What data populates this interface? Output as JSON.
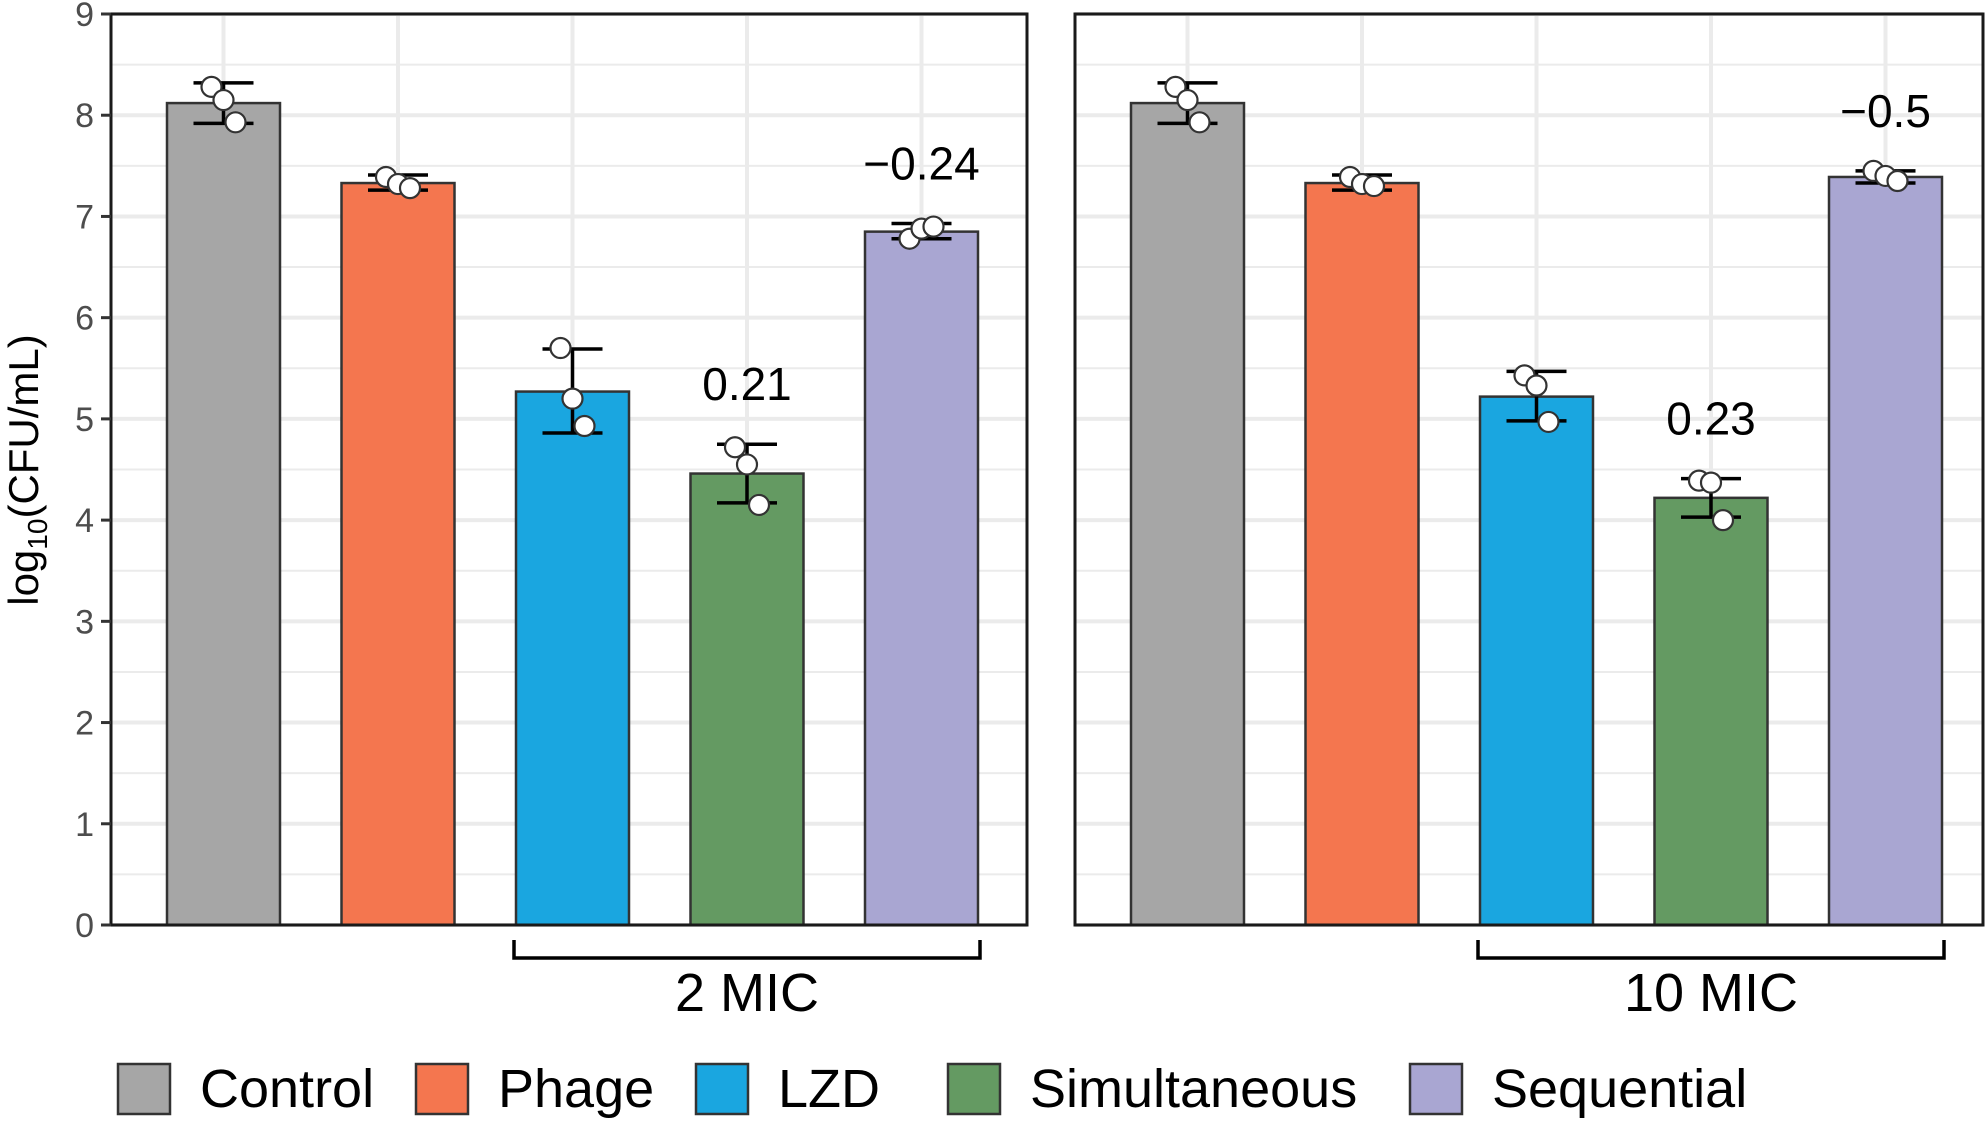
{
  "chart_data": {
    "type": "bar",
    "ylabel": {
      "prefix": "log",
      "subscript": "10",
      "suffix": "(CFU/mL)"
    },
    "ylim": [
      0,
      9
    ],
    "yticks": [
      0,
      1,
      2,
      3,
      4,
      5,
      6,
      7,
      8,
      9
    ],
    "categories": [
      "Control",
      "Phage",
      "LZD",
      "Simultaneous",
      "Sequential"
    ],
    "colors": {
      "Control": "#a6a6a6",
      "Phage": "#f4764f",
      "LZD": "#1aa6e0",
      "Simultaneous": "#649a62",
      "Sequential": "#a9a6d2"
    },
    "panels": [
      {
        "group_label": "2 MIC",
        "bars": [
          {
            "category": "Control",
            "value": 8.12,
            "err_low": 7.92,
            "err_high": 8.32,
            "points": [
              8.28,
              8.15,
              7.93
            ]
          },
          {
            "category": "Phage",
            "value": 7.33,
            "err_low": 7.26,
            "err_high": 7.41,
            "points": [
              7.39,
              7.32,
              7.28
            ]
          },
          {
            "category": "LZD",
            "value": 5.27,
            "err_low": 4.86,
            "err_high": 5.69,
            "points": [
              5.7,
              5.2,
              4.93
            ]
          },
          {
            "category": "Simultaneous",
            "value": 4.46,
            "err_low": 4.17,
            "err_high": 4.75,
            "points": [
              4.72,
              4.55,
              4.15
            ],
            "annotation": "0.21"
          },
          {
            "category": "Sequential",
            "value": 6.85,
            "err_low": 6.78,
            "err_high": 6.93,
            "points": [
              6.78,
              6.88,
              6.9
            ],
            "annotation": "−0.24"
          }
        ]
      },
      {
        "group_label": "10 MIC",
        "bars": [
          {
            "category": "Control",
            "value": 8.12,
            "err_low": 7.92,
            "err_high": 8.32,
            "points": [
              8.28,
              8.15,
              7.93
            ]
          },
          {
            "category": "Phage",
            "value": 7.33,
            "err_low": 7.26,
            "err_high": 7.41,
            "points": [
              7.39,
              7.32,
              7.3
            ]
          },
          {
            "category": "LZD",
            "value": 5.22,
            "err_low": 4.98,
            "err_high": 5.47,
            "points": [
              5.43,
              5.33,
              4.97
            ]
          },
          {
            "category": "Simultaneous",
            "value": 4.22,
            "err_low": 4.03,
            "err_high": 4.41,
            "points": [
              4.39,
              4.37,
              4.0
            ],
            "annotation": "0.23"
          },
          {
            "category": "Sequential",
            "value": 7.39,
            "err_low": 7.33,
            "err_high": 7.45,
            "points": [
              7.45,
              7.4,
              7.35
            ],
            "annotation": "−0.5"
          }
        ]
      }
    ],
    "legend": {
      "position": "bottom",
      "items": [
        "Control",
        "Phage",
        "LZD",
        "Simultaneous",
        "Sequential"
      ]
    },
    "grid": true
  }
}
